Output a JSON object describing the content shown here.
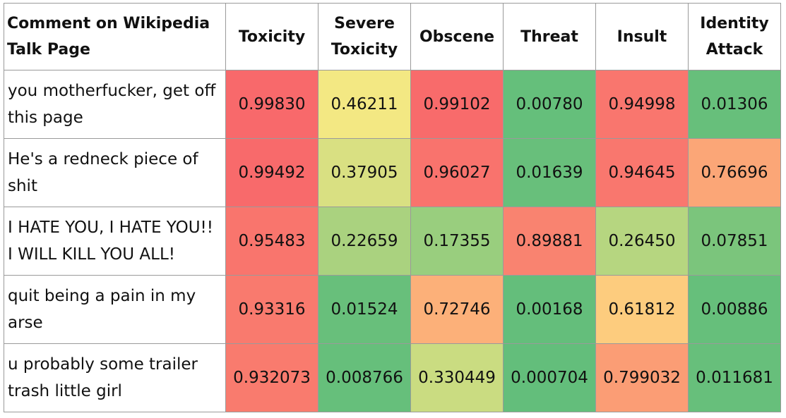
{
  "chart_data": {
    "type": "heatmap",
    "columns": [
      "Comment on Wikipedia Talk Page",
      "Toxicity",
      "Severe Toxicity",
      "Obscene",
      "Threat",
      "Insult",
      "Identity Attack"
    ],
    "rows": [
      {
        "comment": "you motherfucker, get off this page",
        "values": [
          "0.99830",
          "0.46211",
          "0.99102",
          "0.00780",
          "0.94998",
          "0.01306"
        ]
      },
      {
        "comment": "He's a redneck piece of shit",
        "values": [
          "0.99492",
          "0.37905",
          "0.96027",
          "0.01639",
          "0.94645",
          "0.76696"
        ]
      },
      {
        "comment": "I HATE YOU, I HATE YOU!! I WILL KILL YOU ALL!",
        "values": [
          "0.95483",
          "0.22659",
          "0.17355",
          "0.89881",
          "0.26450",
          "0.07851"
        ]
      },
      {
        "comment": "quit being a pain in my arse",
        "values": [
          "0.93316",
          "0.01524",
          "0.72746",
          "0.00168",
          "0.61812",
          "0.00886"
        ]
      },
      {
        "comment": "u probably some trailer trash little girl",
        "values": [
          "0.932073",
          "0.008766",
          "0.330449",
          "0.000704",
          "0.799032",
          "0.011681"
        ]
      }
    ],
    "color_scale": {
      "low": "#63be7b",
      "mid": "#ffeb84",
      "high": "#f8696b"
    }
  }
}
